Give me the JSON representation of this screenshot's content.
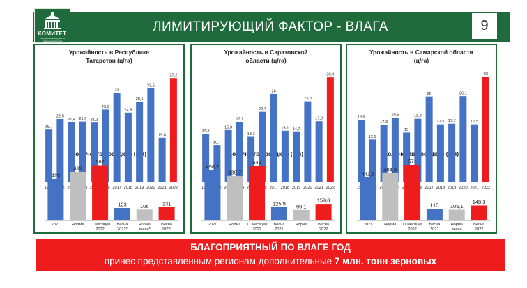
{
  "header": {
    "logo_name": "КОМИТЕТ",
    "logo_sub": "Государственной Думы по аграрным вопросам",
    "title": "ЛИМИТИРУЮЩИЙ ФАКТОР - ВЛАГА",
    "page_number": "9"
  },
  "colors": {
    "green": "#1f6b3b",
    "blue": "#4472c4",
    "red": "#ee1c1c",
    "gray": "#bfbfbf"
  },
  "banner": {
    "line1": "БЛАГОПРИЯТНЫЙ ПО ВЛАГЕ ГОД",
    "line2_prefix": "принес представленным регионам дополнительные ",
    "line2_bold": "7 млн. тонн зерновых"
  },
  "panels": [
    {
      "yield_title_1": "Урожайность в Республике",
      "yield_title_2": "Татарстан (ц/га)",
      "precip_title": "Количество осадков (мм)"
    },
    {
      "yield_title_1": "Урожайность в Саратовской",
      "yield_title_2": "области (ц/га)",
      "precip_title": "Количество осадков (мм)"
    },
    {
      "yield_title_1": "Урожайность в Самарской области",
      "yield_title_2": "(ц/га)",
      "precip_title": "Количество осадков (мм)"
    }
  ],
  "chart_data": [
    {
      "type": "bar",
      "title": "Урожайность в Республике Татарстан (ц/га)",
      "categories": [
        "1990",
        "2012",
        "2013",
        "2014",
        "2015",
        "2016",
        "2017",
        "2018",
        "2019",
        "2020",
        "2021",
        "2022"
      ],
      "values": [
        18.7,
        22.5,
        21.4,
        21.6,
        21.2,
        25.9,
        32,
        24.8,
        28.6,
        33.5,
        15.8,
        37.2
      ],
      "labels": [
        "18,7",
        "22,5",
        "21,4",
        "21,6",
        "21,2",
        "25,9",
        "32",
        "24,8",
        "28,6",
        "33,5",
        "15,8",
        "37,2"
      ],
      "colors": [
        "#4472c4",
        "#4472c4",
        "#4472c4",
        "#4472c4",
        "#4472c4",
        "#4472c4",
        "#4472c4",
        "#4472c4",
        "#4472c4",
        "#4472c4",
        "#4472c4",
        "#ee1c1c"
      ],
      "ylim": [
        0,
        40
      ]
    },
    {
      "type": "bar",
      "title": "Количество осадков (мм)",
      "categories": [
        "2021",
        "Норма",
        "11 месяцев 2022",
        "Весна 2021*",
        "Норма весна*",
        "Весна 2022*"
      ],
      "values": [
        426,
        499,
        567,
        123,
        106,
        131
      ],
      "labels": [
        "426",
        "499",
        "567",
        "123",
        "106",
        "131"
      ],
      "colors": [
        "#4472c4",
        "#bfbfbf",
        "#ee1c1c",
        "#4472c4",
        "#bfbfbf",
        "#ee1c1c"
      ],
      "ylim": [
        0,
        600
      ]
    },
    {
      "type": "bar",
      "title": "Урожайность в Саратовской области (ц/га)",
      "categories": [
        "1990",
        "2012",
        "2013",
        "2014",
        "2015",
        "2016",
        "2017",
        "2018",
        "2019",
        "2020",
        "2021",
        "2022"
      ],
      "values": [
        14.2,
        10.7,
        15.3,
        17.7,
        13.3,
        20.7,
        26,
        15.1,
        14.7,
        23.8,
        17.9,
        30.9
      ],
      "labels": [
        "14,2",
        "10,7",
        "15,3",
        "17,7",
        "13,3",
        "20,7",
        "26",
        "15,1",
        "14,7",
        "23,8",
        "17,9",
        "30,9"
      ],
      "colors": [
        "#4472c4",
        "#4472c4",
        "#4472c4",
        "#4472c4",
        "#4472c4",
        "#4472c4",
        "#4472c4",
        "#4472c4",
        "#4472c4",
        "#4472c4",
        "#4472c4",
        "#ee1c1c"
      ],
      "ylim": [
        0,
        33
      ]
    },
    {
      "type": "bar",
      "title": "Количество осадков (мм)",
      "categories": [
        "2021",
        "Норма",
        "11 месяцев 2022",
        "Весна 2021",
        "Норма",
        "Весна 2022"
      ],
      "values": [
        498.7,
        439.7,
        542,
        125.9,
        99.1,
        159.8
      ],
      "labels": [
        "498,7",
        "439,7",
        "542",
        "125,9",
        "99,1",
        "159,8"
      ],
      "colors": [
        "#4472c4",
        "#bfbfbf",
        "#ee1c1c",
        "#4472c4",
        "#bfbfbf",
        "#ee1c1c"
      ],
      "ylim": [
        0,
        580
      ]
    },
    {
      "type": "bar",
      "title": "Урожайность в Самарской области (ц/га)",
      "categories": [
        "1990",
        "2012",
        "2013",
        "2014",
        "2015",
        "2016",
        "2017",
        "2018",
        "2019",
        "2020",
        "2021",
        "2022"
      ],
      "values": [
        18.9,
        12.9,
        17.3,
        19.5,
        15,
        19.2,
        26,
        17.5,
        17.7,
        26.1,
        17.5,
        32
      ],
      "labels": [
        "18,9",
        "12,9",
        "17,3",
        "19,5",
        "15",
        "19,2",
        "26",
        "17,5",
        "17,7",
        "26,1",
        "17,5",
        "32"
      ],
      "colors": [
        "#4472c4",
        "#4472c4",
        "#4472c4",
        "#4472c4",
        "#4472c4",
        "#4472c4",
        "#4472c4",
        "#4472c4",
        "#4472c4",
        "#4472c4",
        "#4472c4",
        "#ee1c1c"
      ],
      "ylim": [
        0,
        34
      ]
    },
    {
      "type": "bar",
      "title": "Количество осадков (мм)",
      "categories": [
        "2021",
        "Норма",
        "11 месяцев 2022",
        "Весна 2021",
        "Норма весна",
        "Весна 2022"
      ],
      "values": [
        442.8,
        484.9,
        571,
        115,
        105.1,
        148.3
      ],
      "labels": [
        "442,8",
        "484,9",
        "571",
        "115",
        "105,1",
        "148,3"
      ],
      "colors": [
        "#4472c4",
        "#bfbfbf",
        "#ee1c1c",
        "#4472c4",
        "#bfbfbf",
        "#ee1c1c"
      ],
      "ylim": [
        0,
        600
      ]
    }
  ]
}
